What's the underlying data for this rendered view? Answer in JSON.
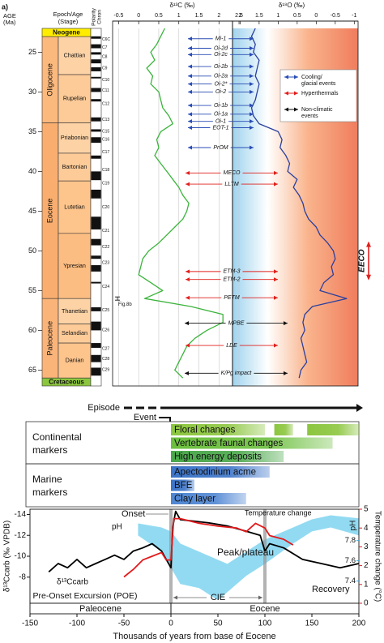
{
  "chart_data": [
    {
      "type": "line",
      "title": "a)",
      "ylabel": [
        "AGE",
        "(Ma)"
      ],
      "ylim": [
        22,
        67
      ],
      "yticks": [
        25,
        30,
        35,
        40,
        45,
        50,
        55,
        60,
        65
      ],
      "column_headers": {
        "stage": [
          "Epoch/Age",
          "(Stage)"
        ],
        "polarity": [
          "Polarity",
          "Chron"
        ]
      },
      "xlabel": "δ¹³C (‰)",
      "xlim": [
        -0.65,
        2.6
      ],
      "xticks": [
        -0.5,
        0,
        0.5,
        1,
        1.5,
        2,
        2.5
      ],
      "x2label": "δ¹⁸O (‰)",
      "x2lim": [
        2.2,
        -1.1
      ],
      "x2ticks": [
        2,
        1.5,
        1,
        0.5,
        0,
        -0.5,
        -1
      ],
      "grid": true,
      "periods": [
        {
          "name": "Neogene",
          "start": 22,
          "end": 23.03,
          "color": "#ffed00"
        },
        {
          "name": "Cretaceous",
          "start": 66,
          "end": 67,
          "color": "#8cc63f"
        }
      ],
      "epochs": [
        {
          "name": "Oligocene",
          "start": 23.03,
          "end": 33.9,
          "color": "#fbb97e"
        },
        {
          "name": "Eocene",
          "start": 33.9,
          "end": 56,
          "color": "#f9ae6f"
        },
        {
          "name": "Paleocene",
          "start": 56,
          "end": 66,
          "color": "#fab47a"
        }
      ],
      "stages": [
        {
          "name": "Chattian",
          "start": 23.03,
          "end": 27.82,
          "color": "#fdd3a6"
        },
        {
          "name": "Rupelian",
          "start": 27.82,
          "end": 33.9,
          "color": "#fdcb98"
        },
        {
          "name": "Priabonian",
          "start": 33.9,
          "end": 37.71,
          "color": "#fdd3a6"
        },
        {
          "name": "Bartonian",
          "start": 37.71,
          "end": 41.2,
          "color": "#fdcb98"
        },
        {
          "name": "Lutetian",
          "start": 41.2,
          "end": 47.8,
          "color": "#fdc48c"
        },
        {
          "name": "Ypresian",
          "start": 47.8,
          "end": 56,
          "color": "#fcbd82"
        },
        {
          "name": "Thanetian",
          "start": 56,
          "end": 59.2,
          "color": "#fdd3a6"
        },
        {
          "name": "Selandian",
          "start": 59.2,
          "end": 61.6,
          "color": "#fdcb98"
        },
        {
          "name": "Danian",
          "start": 61.6,
          "end": 66,
          "color": "#fdc48c"
        }
      ],
      "chrons": [
        {
          "name": "C6C",
          "age": 23.4
        },
        {
          "name": "C7",
          "age": 24.4
        },
        {
          "name": "C8",
          "age": 25.6
        },
        {
          "name": "C9",
          "age": 27.0
        },
        {
          "name": "C10",
          "age": 28.5
        },
        {
          "name": "C11",
          "age": 29.8
        },
        {
          "name": "C12",
          "age": 31.5
        },
        {
          "name": "C13",
          "age": 33.5
        },
        {
          "name": "C15",
          "age": 35.0
        },
        {
          "name": "C16",
          "age": 36.0
        },
        {
          "name": "C17",
          "age": 37.6
        },
        {
          "name": "C18",
          "age": 39.8
        },
        {
          "name": "C19",
          "age": 41.5
        },
        {
          "name": "C20",
          "age": 44.5
        },
        {
          "name": "C21",
          "age": 47.5
        },
        {
          "name": "C22",
          "age": 49.5
        },
        {
          "name": "C23",
          "age": 51.5
        },
        {
          "name": "C24",
          "age": 54.5
        },
        {
          "name": "C25",
          "age": 57.5
        },
        {
          "name": "C26",
          "age": 60.0
        },
        {
          "name": "C27",
          "age": 62.3
        },
        {
          "name": "C28",
          "age": 63.6
        },
        {
          "name": "C29",
          "age": 65.0
        }
      ],
      "polarity_normal": [
        [
          23.0,
          23.3
        ],
        [
          24.0,
          24.5
        ],
        [
          25.0,
          25.3
        ],
        [
          25.9,
          26.4
        ],
        [
          26.9,
          27.4
        ],
        [
          28.1,
          28.3
        ],
        [
          29.5,
          30.0
        ],
        [
          30.9,
          31.2
        ],
        [
          33.2,
          33.7
        ],
        [
          34.7,
          35.0
        ],
        [
          35.7,
          36.4
        ],
        [
          38.0,
          38.4
        ],
        [
          40.0,
          41.1
        ],
        [
          42.3,
          43.4
        ],
        [
          45.7,
          47.3
        ],
        [
          48.5,
          49.3
        ],
        [
          50.6,
          51.0
        ],
        [
          51.8,
          52.6
        ],
        [
          53.9,
          54.1
        ],
        [
          57.1,
          57.6
        ],
        [
          58.9,
          60.0
        ],
        [
          61.6,
          62.2
        ],
        [
          63.1,
          64.0
        ],
        [
          64.7,
          65.7
        ]
      ],
      "series": [
        {
          "color": "#3cb43c",
          "axis": "x",
          "y": [
            22,
            23,
            24,
            25,
            26,
            27,
            28,
            29,
            30,
            31,
            32,
            33,
            34,
            35,
            36,
            37,
            38,
            39,
            40,
            41,
            42,
            43,
            44,
            45,
            46,
            47,
            48,
            49,
            50,
            51,
            52,
            53,
            54,
            55,
            56,
            57,
            58,
            59,
            60,
            61,
            62,
            63,
            64,
            65,
            66
          ],
          "values": [
            0.65,
            0.55,
            0.45,
            0.3,
            0.4,
            0.2,
            0.35,
            0.3,
            0.5,
            0.55,
            0.6,
            0.75,
            0.85,
            0.55,
            0.45,
            0.5,
            0.4,
            0.55,
            0.7,
            0.85,
            1.0,
            1.1,
            1.25,
            1.2,
            1.1,
            0.9,
            0.7,
            0.5,
            0.25,
            0.1,
            0.05,
            0.0,
            0.3,
            0.6,
            0.15,
            1.3,
            2.1,
            2.1,
            1.7,
            1.4,
            1.2,
            1.1,
            1.0,
            0.9,
            1.1
          ]
        },
        {
          "color": "#2a3f9e",
          "axis": "x2",
          "y": [
            22,
            23,
            24,
            25,
            26,
            27,
            28,
            29,
            30,
            31,
            32,
            33,
            34,
            35,
            36,
            37,
            38,
            39,
            40,
            41,
            42,
            43,
            44,
            45,
            46,
            47,
            48,
            49,
            50,
            51,
            52,
            53,
            54,
            55,
            56,
            57,
            58,
            59,
            60,
            61,
            62,
            63,
            64,
            65,
            66
          ],
          "values": [
            1.6,
            1.7,
            1.6,
            1.65,
            1.5,
            1.55,
            1.6,
            1.5,
            1.55,
            1.6,
            1.7,
            1.65,
            1.5,
            1.0,
            0.9,
            0.95,
            0.8,
            0.7,
            0.75,
            0.5,
            0.6,
            0.45,
            0.35,
            0.3,
            0.2,
            0.0,
            -0.1,
            -0.3,
            -0.45,
            -0.5,
            -0.4,
            -0.45,
            -0.2,
            -0.1,
            -0.8,
            0.1,
            0.3,
            0.35,
            0.3,
            0.4,
            0.35,
            0.3,
            0.25,
            0.4,
            0.45
          ]
        }
      ],
      "legend": [
        {
          "label": [
            "Cooling/",
            "glacial events"
          ],
          "color": "#2a4db5"
        },
        {
          "label": [
            "Hyperthermals"
          ],
          "color": "#e0201c"
        },
        {
          "label": [
            "Non-climatic",
            "events"
          ],
          "color": "#111111"
        }
      ],
      "events": [
        {
          "label": "Mi-1",
          "age": 23.3,
          "kind": 0
        },
        {
          "label": "Oi-2d",
          "age": 24.5,
          "kind": 0
        },
        {
          "label": "Oi-2c",
          "age": 25.3,
          "kind": 0
        },
        {
          "label": "Oi-2b",
          "age": 26.8,
          "kind": 0
        },
        {
          "label": "Oi-2a",
          "age": 28.0,
          "kind": 0
        },
        {
          "label": "Oi-2*",
          "age": 29.0,
          "kind": 0
        },
        {
          "label": "Oi-2",
          "age": 30.0,
          "kind": 0
        },
        {
          "label": "Oi-1b",
          "age": 31.7,
          "kind": 0
        },
        {
          "label": "Oi-1a",
          "age": 32.8,
          "kind": 0
        },
        {
          "label": "Oi-1",
          "age": 33.7,
          "kind": 0
        },
        {
          "label": "EOT-1",
          "age": 34.5,
          "kind": 0
        },
        {
          "label": "PrOM",
          "age": 37.0,
          "kind": 0
        },
        {
          "label": "MECO",
          "age": 40.2,
          "kind": 1
        },
        {
          "label": "LLTM",
          "age": 41.6,
          "kind": 1
        },
        {
          "label": "ETM-3",
          "age": 52.6,
          "kind": 1
        },
        {
          "label": "ETM-2",
          "age": 53.6,
          "kind": 1
        },
        {
          "label": "PETM",
          "age": 55.9,
          "kind": 1
        },
        {
          "label": "MPBE",
          "age": 59.1,
          "kind": 2
        },
        {
          "label": "LDE",
          "age": 61.9,
          "kind": 1
        },
        {
          "label": "K/Pg impact",
          "age": 65.4,
          "kind": 2
        }
      ],
      "eeco": {
        "label": "EECO",
        "start": 49,
        "end": 53.5
      },
      "fig_ref": {
        "label": "Fig.8b",
        "age": 56
      }
    },
    {
      "type": "line",
      "xlabel": "Thousands of years from base of Eocene",
      "xlim": [
        -150,
        200
      ],
      "xticks": [
        -150,
        -100,
        -50,
        0,
        50,
        100,
        150,
        200
      ],
      "ylabel": "δ¹³Ccarb (‰ VPDB)",
      "ylim": [
        -5.5,
        -14.5
      ],
      "yticks": [
        -14,
        -12,
        -10,
        -8
      ],
      "y2label": "Temperature change (°C)",
      "y2lim": [
        0,
        5
      ],
      "y2ticks": [
        0,
        1,
        2,
        3,
        4,
        5
      ],
      "y2color": "#e31a1c",
      "y3label": "pH",
      "y3lim": [
        7.18,
        8.11
      ],
      "y3ticks": [
        7.4,
        7.6,
        7.8
      ],
      "y3color": "#29aee0",
      "series": [
        {
          "name": "δ¹³Ccarb",
          "color": "#000000",
          "x": [
            -130,
            -120,
            -110,
            -100,
            -90,
            -80,
            -70,
            -60,
            -50,
            -40,
            -30,
            -20,
            -10,
            -5,
            0,
            2,
            5,
            10,
            20,
            40,
            60,
            80,
            95,
            100,
            105,
            120,
            140,
            160,
            180,
            200
          ],
          "values": [
            -8.5,
            -9.3,
            -8.9,
            -9.7,
            -8.9,
            -9.3,
            -9.7,
            -10.1,
            -9.7,
            -10.5,
            -10.8,
            -11.2,
            -10.5,
            -9.7,
            -8.9,
            -12.8,
            -14.3,
            -13.5,
            -13.4,
            -13.2,
            -12.9,
            -12.4,
            -12.0,
            -10.5,
            -11.2,
            -10.8,
            -9.7,
            -9.3,
            -8.9,
            -9.3
          ]
        },
        {
          "name": "Temperature change",
          "color": "#e31a1c",
          "axis": "y2",
          "x": [
            -50,
            -40,
            -30,
            -20,
            -10,
            -5,
            0,
            3,
            10,
            30,
            50,
            70,
            80,
            90,
            100,
            105,
            120,
            130
          ],
          "values": [
            1.4,
            1.8,
            2.3,
            2.5,
            2.7,
            2.3,
            2.3,
            4.5,
            4.5,
            4.25,
            4.1,
            4.0,
            3.8,
            4.25,
            4.0,
            3.6,
            3.4,
            3.1
          ]
        }
      ],
      "bands": [
        {
          "name": "pH",
          "color": "#7fd3f0",
          "axis": "y3",
          "x": [
            -35,
            -10,
            0,
            10,
            30,
            50,
            60,
            80,
            100,
            130,
            150,
            170,
            200
          ],
          "upper": [
            7.97,
            7.93,
            7.89,
            7.77,
            7.69,
            7.61,
            7.57,
            7.69,
            7.81,
            7.93,
            8.01,
            8.05,
            8.02
          ],
          "lower": [
            7.85,
            7.69,
            7.53,
            7.37,
            7.33,
            7.21,
            7.29,
            7.45,
            7.57,
            7.77,
            7.89,
            7.93,
            7.85
          ]
        }
      ],
      "boundaries": [
        0,
        100
      ],
      "annotations": [
        "Onset",
        "Peak/plateau",
        "Recovery",
        "Pre-Onset Excursion (POE)",
        "CIE"
      ],
      "epochs": [
        {
          "name": "Paleocene",
          "end": 0
        },
        {
          "name": "Eocene",
          "start": 0
        }
      ],
      "episode": "Episode",
      "event": "Event",
      "marker_groups": [
        {
          "label": [
            "Continental",
            "markers"
          ],
          "bars": [
            {
              "label": "Floral changes",
              "start": 0,
              "end": 100,
              "extra": [
                [
                  110,
                  130
                ],
                [
                  145,
                  200
                ]
              ],
              "color": "#8cc63f"
            },
            {
              "label": "Vertebrate faunal changes",
              "start": 0,
              "end": 172,
              "color": "#6cbf3e"
            },
            {
              "label": "High energy deposits",
              "start": 0,
              "end": 120,
              "color": "#4aa84a"
            }
          ]
        },
        {
          "label": [
            "Marine",
            "markers"
          ],
          "bars": [
            {
              "label": "Apectodinium acme",
              "start": 0,
              "end": 105,
              "color": "#3b74c8"
            },
            {
              "label": "BFE",
              "start": 0,
              "end": 25,
              "color": "#3b74c8"
            },
            {
              "label": "Clay layer",
              "start": 0,
              "end": 80,
              "color": "#4f86d2"
            }
          ]
        }
      ]
    }
  ]
}
